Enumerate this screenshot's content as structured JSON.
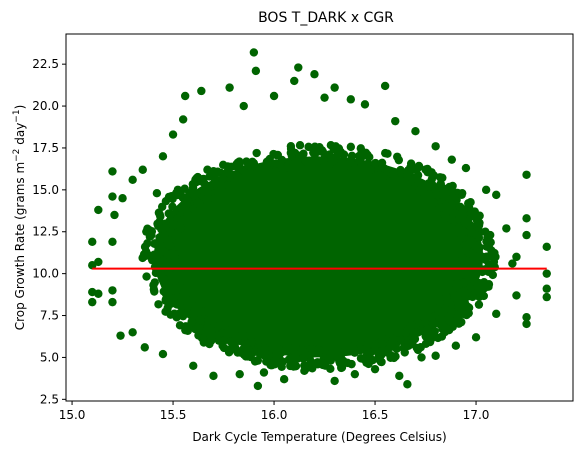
{
  "chart_data": {
    "type": "scatter",
    "title": "BOS T_DARK x CGR",
    "xlabel": "Dark Cycle Temperature (Degrees Celsius)",
    "ylabel": "Crop Growth Rate (grams m$^{-2}$ day$^{-1}$)",
    "ylabel_parts": {
      "base": "Crop Growth Rate (grams m",
      "exp1": "−2",
      "mid": " day",
      "exp2": "−1",
      "tail": ")"
    },
    "xlim": [
      14.97,
      17.48
    ],
    "ylim": [
      2.4,
      24.3
    ],
    "x_ticks": [
      "15.0",
      "15.5",
      "16.0",
      "16.5",
      "17.0"
    ],
    "x_tick_values": [
      15.0,
      15.5,
      16.0,
      16.5,
      17.0
    ],
    "y_ticks": [
      "2.5",
      "5.0",
      "7.5",
      "10.0",
      "12.5",
      "15.0",
      "17.5",
      "20.0",
      "22.5"
    ],
    "y_tick_values": [
      2.5,
      5.0,
      7.5,
      10.0,
      12.5,
      15.0,
      17.5,
      20.0,
      22.5
    ],
    "grid": false,
    "legend": "none",
    "point_color": "#006400",
    "line_color": "#ff0000",
    "points": [
      [
        15.1,
        11.9
      ],
      [
        15.1,
        10.5
      ],
      [
        15.1,
        8.9
      ],
      [
        15.1,
        8.3
      ],
      [
        15.13,
        8.8
      ],
      [
        15.13,
        13.8
      ],
      [
        15.13,
        10.7
      ],
      [
        15.2,
        16.1
      ],
      [
        15.2,
        14.6
      ],
      [
        15.21,
        13.5
      ],
      [
        15.2,
        11.9
      ],
      [
        15.2,
        9.0
      ],
      [
        15.2,
        8.3
      ],
      [
        15.25,
        14.5
      ],
      [
        15.24,
        6.3
      ],
      [
        15.3,
        15.6
      ],
      [
        15.3,
        6.5
      ],
      [
        15.36,
        5.6
      ],
      [
        15.35,
        16.2
      ],
      [
        15.42,
        14.8
      ],
      [
        15.45,
        17.0
      ],
      [
        15.5,
        18.3
      ],
      [
        15.45,
        5.2
      ],
      [
        15.55,
        19.2
      ],
      [
        15.56,
        20.6
      ],
      [
        15.6,
        4.5
      ],
      [
        15.64,
        20.9
      ],
      [
        15.7,
        3.9
      ],
      [
        15.78,
        21.1
      ],
      [
        15.83,
        4.0
      ],
      [
        15.85,
        20.0
      ],
      [
        15.9,
        23.2
      ],
      [
        15.91,
        22.1
      ],
      [
        15.92,
        3.3
      ],
      [
        15.95,
        4.1
      ],
      [
        16.0,
        20.6
      ],
      [
        16.05,
        3.7
      ],
      [
        16.1,
        21.5
      ],
      [
        16.12,
        22.3
      ],
      [
        16.15,
        4.2
      ],
      [
        16.2,
        21.9
      ],
      [
        16.25,
        20.5
      ],
      [
        16.3,
        21.1
      ],
      [
        16.3,
        3.6
      ],
      [
        16.38,
        20.4
      ],
      [
        16.4,
        4.0
      ],
      [
        16.45,
        20.1
      ],
      [
        16.5,
        4.3
      ],
      [
        16.55,
        21.2
      ],
      [
        16.6,
        19.1
      ],
      [
        16.62,
        3.9
      ],
      [
        16.66,
        3.4
      ],
      [
        16.7,
        18.5
      ],
      [
        16.73,
        5.0
      ],
      [
        16.8,
        17.6
      ],
      [
        16.8,
        5.1
      ],
      [
        16.88,
        16.8
      ],
      [
        16.9,
        5.7
      ],
      [
        16.95,
        16.3
      ],
      [
        17.0,
        6.2
      ],
      [
        17.05,
        15.0
      ],
      [
        17.1,
        14.7
      ],
      [
        17.1,
        7.6
      ],
      [
        17.15,
        12.7
      ],
      [
        17.18,
        10.6
      ],
      [
        17.2,
        11.0
      ],
      [
        17.2,
        8.7
      ],
      [
        17.25,
        15.9
      ],
      [
        17.25,
        7.0
      ],
      [
        17.25,
        7.4
      ],
      [
        17.25,
        13.3
      ],
      [
        17.25,
        12.3
      ],
      [
        17.35,
        9.1
      ],
      [
        17.35,
        8.6
      ],
      [
        17.35,
        11.6
      ],
      [
        17.35,
        10.0
      ]
    ],
    "trend_line": {
      "x": [
        15.1,
        17.35
      ],
      "y": [
        10.3,
        10.3
      ]
    }
  }
}
